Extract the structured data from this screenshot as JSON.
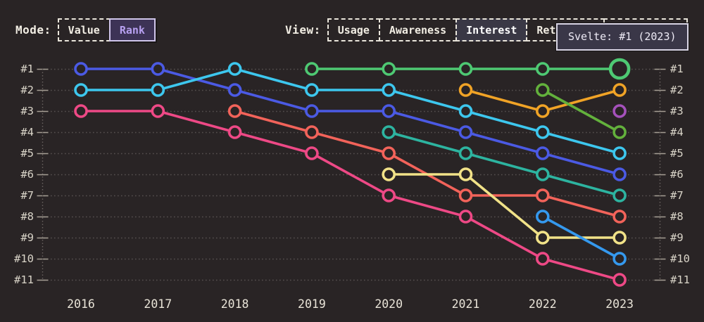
{
  "header": {
    "mode": {
      "label": "Mode:",
      "options": [
        {
          "label": "Value",
          "selected": false
        },
        {
          "label": "Rank",
          "selected": true
        }
      ]
    },
    "view": {
      "label": "View:",
      "options": [
        {
          "label": "Usage",
          "selected": false
        },
        {
          "label": "Awareness",
          "selected": false
        },
        {
          "label": "Interest",
          "selected": true
        },
        {
          "label": "Retention",
          "selected": false
        },
        {
          "label": "Positivity",
          "selected": false
        }
      ]
    }
  },
  "tooltip": {
    "text": "Svelte: #1 (2023)"
  },
  "colors": {
    "background": "#292425",
    "grid": "#575150",
    "tick": "#a59e94",
    "axis_text": "#d9d4c8",
    "year_text": "#e9e4d8",
    "selected_mode_bg": "#3d3356",
    "selected_mode_text": "#b7a0f0",
    "selected_view_bg": "#3a3845",
    "tooltip_bg": "#3a3748",
    "tooltip_border": "#d8d4e4"
  },
  "chart_data": {
    "type": "line",
    "subtype": "bump-rank-chart",
    "title": "",
    "xlabel": "",
    "ylabel": "",
    "x": [
      2016,
      2017,
      2018,
      2019,
      2020,
      2021,
      2022,
      2023
    ],
    "rank_labels": [
      "#1",
      "#2",
      "#3",
      "#4",
      "#5",
      "#6",
      "#7",
      "#8",
      "#9",
      "#10",
      "#11"
    ],
    "ylim": [
      1,
      11
    ],
    "grid": "dotted horizontal rows, dotted vertical axis lines left and right with tick marks",
    "legend_position": "none (colors only; tooltip identifies green series as Svelte)",
    "highlight": {
      "series": "svelte-green",
      "year": 2023,
      "rank": 1,
      "label": "Svelte: #1 (2023)"
    },
    "series": [
      {
        "name": "blue",
        "color": "#4b5ae4",
        "ranks": [
          1,
          1,
          2,
          3,
          3,
          4,
          5,
          6
        ]
      },
      {
        "name": "cyan",
        "color": "#3dc7ee",
        "ranks": [
          2,
          2,
          1,
          2,
          2,
          3,
          4,
          5
        ]
      },
      {
        "name": "pink",
        "color": "#ee4986",
        "ranks": [
          3,
          3,
          4,
          5,
          7,
          8,
          10,
          11
        ]
      },
      {
        "name": "coral",
        "color": "#f2635a",
        "ranks": [
          null,
          null,
          3,
          4,
          5,
          7,
          7,
          8
        ]
      },
      {
        "name": "svelte-green",
        "color": "#4ec973",
        "ranks": [
          null,
          null,
          null,
          1,
          1,
          1,
          1,
          1
        ]
      },
      {
        "name": "teal",
        "color": "#2db4a0",
        "ranks": [
          null,
          null,
          null,
          null,
          4,
          5,
          6,
          7
        ]
      },
      {
        "name": "yellow",
        "color": "#f1e288",
        "ranks": [
          null,
          null,
          null,
          null,
          6,
          6,
          9,
          9
        ]
      },
      {
        "name": "orange",
        "color": "#f0a326",
        "ranks": [
          null,
          null,
          null,
          null,
          null,
          2,
          3,
          2
        ]
      },
      {
        "name": "olive-green",
        "color": "#63b13c",
        "ranks": [
          null,
          null,
          null,
          null,
          null,
          null,
          2,
          4
        ]
      },
      {
        "name": "sky-blue",
        "color": "#3599ee",
        "ranks": [
          null,
          null,
          null,
          null,
          null,
          null,
          8,
          10
        ]
      },
      {
        "name": "purple",
        "color": "#a551bb",
        "ranks": [
          null,
          null,
          null,
          null,
          null,
          null,
          null,
          3
        ]
      }
    ]
  }
}
